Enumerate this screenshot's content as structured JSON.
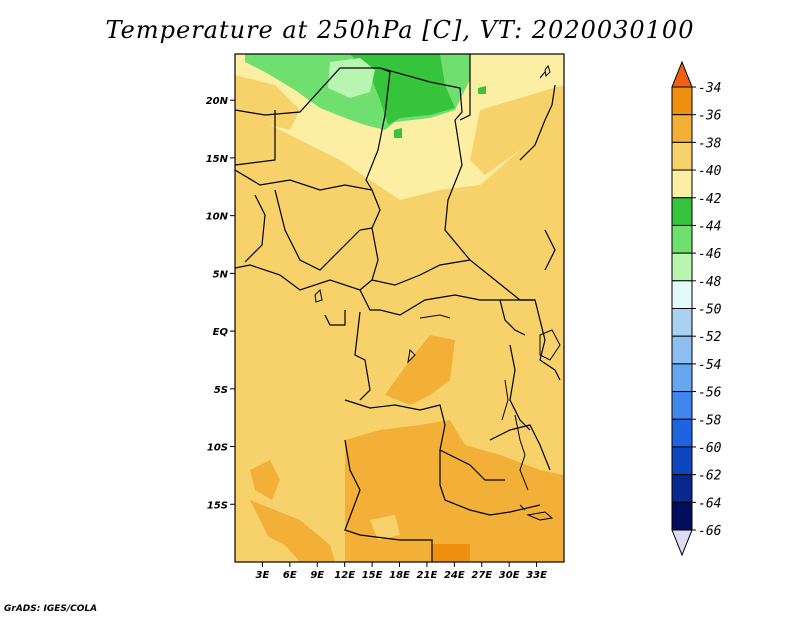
{
  "title": "Temperature at 250hPa [C], VT: 2020030100",
  "credit": "GrADS: IGES/COLA",
  "map": {
    "lon_range": [
      0,
      36
    ],
    "lat_range": [
      -20,
      24
    ],
    "lat_ticks": [
      {
        "value": 20,
        "label": "20N"
      },
      {
        "value": 15,
        "label": "15N"
      },
      {
        "value": 10,
        "label": "10N"
      },
      {
        "value": 5,
        "label": "5N"
      },
      {
        "value": 0,
        "label": "EQ"
      },
      {
        "value": -5,
        "label": "5S"
      },
      {
        "value": -10,
        "label": "10S"
      },
      {
        "value": -15,
        "label": "15S"
      }
    ],
    "lon_ticks": [
      {
        "value": 3,
        "label": "3E"
      },
      {
        "value": 6,
        "label": "6E"
      },
      {
        "value": 9,
        "label": "9E"
      },
      {
        "value": 12,
        "label": "12E"
      },
      {
        "value": 15,
        "label": "15E"
      },
      {
        "value": 18,
        "label": "18E"
      },
      {
        "value": 21,
        "label": "21E"
      },
      {
        "value": 24,
        "label": "24E"
      },
      {
        "value": 27,
        "label": "27E"
      },
      {
        "value": 30,
        "label": "30E"
      },
      {
        "value": 33,
        "label": "33E"
      }
    ]
  },
  "colorbar": {
    "levels": [
      "-34",
      "-36",
      "-38",
      "-40",
      "-42",
      "-44",
      "-46",
      "-48",
      "-50",
      "-52",
      "-54",
      "-56",
      "-58",
      "-60",
      "-62",
      "-64",
      "-66"
    ],
    "colors": [
      "#f06010",
      "#f09010",
      "#f2b038",
      "#f7d26a",
      "#fcefa4",
      "#36c43c",
      "#6fdf6f",
      "#b8f5b0",
      "#e3fbf8",
      "#aad2f0",
      "#8cbff0",
      "#66a6ef",
      "#3f87ec",
      "#1e64e0",
      "#0e46c0",
      "#09288e",
      "#040c5c",
      "#dcdcf8"
    ]
  }
}
